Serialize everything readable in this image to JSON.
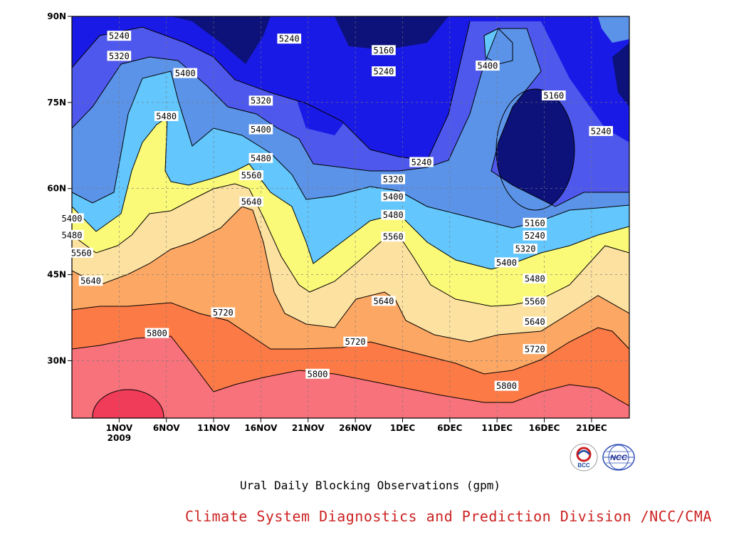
{
  "chart_data": {
    "type": "heatmap",
    "subtype": "filled-contour",
    "title": "Ural Daily Blocking Observations (gpm)",
    "x_axis": {
      "ticks": [
        "1NOV",
        "6NOV",
        "11NOV",
        "16NOV",
        "21NOV",
        "26NOV",
        "1DEC",
        "6DEC",
        "11DEC",
        "16DEC",
        "21DEC"
      ],
      "year_label": "2009",
      "range": [
        "27OCT2009",
        "25DEC2009"
      ]
    },
    "y_axis": {
      "ticks": [
        "90N",
        "75N",
        "60N",
        "45N",
        "30N"
      ],
      "range": [
        20,
        90
      ],
      "units": "latitude"
    },
    "contour_levels": [
      5160,
      5240,
      5320,
      5400,
      5480,
      5560,
      5640,
      5720,
      5800
    ],
    "fill_colors": [
      "#0c127a",
      "#1a1ae6",
      "#4e58ec",
      "#5b93e8",
      "#63c6fc",
      "#fafa78",
      "#fde1a0",
      "#fca864",
      "#fc7a46",
      "#f7727a",
      "#f03c58"
    ],
    "contour_labels": [
      {
        "level": 5240,
        "date": "1NOV",
        "lat": 86.5
      },
      {
        "level": 5320,
        "date": "1NOV",
        "lat": 83
      },
      {
        "level": 5400,
        "date": "8NOV",
        "lat": 80
      },
      {
        "level": 5480,
        "date": "6NOV",
        "lat": 72.5
      },
      {
        "level": 5240,
        "date": "19NOV",
        "lat": 86
      },
      {
        "level": 5320,
        "date": "16NOV",
        "lat": 75.2
      },
      {
        "level": 5400,
        "date": "16NOV",
        "lat": 70.2
      },
      {
        "level": 5480,
        "date": "16NOV",
        "lat": 65.2
      },
      {
        "level": 5560,
        "date": "15NOV",
        "lat": 62.2
      },
      {
        "level": 5640,
        "date": "15NOV",
        "lat": 57.6
      },
      {
        "level": 5160,
        "date": "29NOV",
        "lat": 84
      },
      {
        "level": 5240,
        "date": "29NOV",
        "lat": 80.3
      },
      {
        "level": 5240,
        "date": "3DEC",
        "lat": 64.5
      },
      {
        "level": 5320,
        "date": "30NOV",
        "lat": 61.5
      },
      {
        "level": 5400,
        "date": "30NOV",
        "lat": 58.5
      },
      {
        "level": 5480,
        "date": "30NOV",
        "lat": 55.3
      },
      {
        "level": 5560,
        "date": "30NOV",
        "lat": 51.5
      },
      {
        "level": 5400,
        "date": "10DEC",
        "lat": 81.3
      },
      {
        "level": 5160,
        "date": "17DEC",
        "lat": 76.1
      },
      {
        "level": 5240,
        "date": "22DEC",
        "lat": 69.9
      },
      {
        "level": 5160,
        "date": "15DEC",
        "lat": 53.9
      },
      {
        "level": 5240,
        "date": "15DEC",
        "lat": 51.7
      },
      {
        "level": 5320,
        "date": "14DEC",
        "lat": 49.4
      },
      {
        "level": 5400,
        "date": "12DEC",
        "lat": 47.0
      },
      {
        "level": 5480,
        "date": "15DEC",
        "lat": 44.2
      },
      {
        "level": 5560,
        "date": "15DEC",
        "lat": 40.2
      },
      {
        "level": 5640,
        "date": "15DEC",
        "lat": 36.7
      },
      {
        "level": 5720,
        "date": "15DEC",
        "lat": 31.9
      },
      {
        "level": 5800,
        "date": "12DEC",
        "lat": 25.5
      },
      {
        "level": 5400,
        "date": "27OCT",
        "lat": 54.7
      },
      {
        "level": 5480,
        "date": "27OCT",
        "lat": 51.8
      },
      {
        "level": 5560,
        "date": "28OCT",
        "lat": 48.7
      },
      {
        "level": 5640,
        "date": "29OCT",
        "lat": 43.8
      },
      {
        "level": 5720,
        "date": "12NOV",
        "lat": 38.3
      },
      {
        "level": 5800,
        "date": "5NOV",
        "lat": 34.7
      },
      {
        "level": 5640,
        "date": "29NOV",
        "lat": 40.3
      },
      {
        "level": 5720,
        "date": "26NOV",
        "lat": 33.2
      },
      {
        "level": 5800,
        "date": "22NOV",
        "lat": 27.6
      }
    ]
  },
  "footer": {
    "caption": "Ural Daily Blocking Observations (gpm)",
    "credit": "Climate System Diagnostics and Prediction Division /NCC/CMA",
    "credit_color": "#cc2222"
  },
  "logos": [
    {
      "name": "bcc-logo",
      "text": "BCC"
    },
    {
      "name": "ncc-logo",
      "text": "NCC"
    }
  ]
}
